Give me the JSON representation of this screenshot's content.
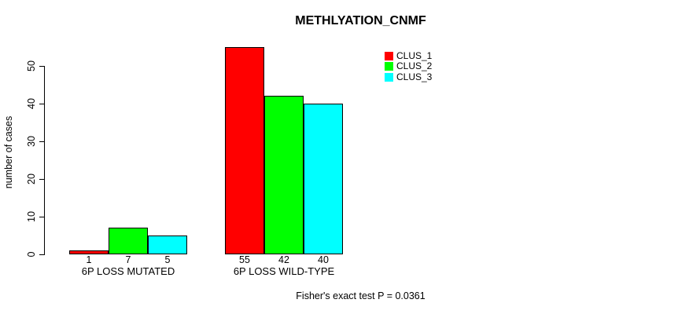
{
  "chart_data": {
    "type": "bar",
    "title": "METHLYATION_CNMF",
    "ylabel": "number of cases",
    "xlabel": "",
    "categories": [
      "6P LOSS MUTATED",
      "6P LOSS WILD-TYPE"
    ],
    "series": [
      {
        "name": "CLUS_1",
        "color": "#ff0000",
        "values": [
          1,
          55
        ]
      },
      {
        "name": "CLUS_2",
        "color": "#00ff00",
        "values": [
          7,
          42
        ]
      },
      {
        "name": "CLUS_3",
        "color": "#00ffff",
        "values": [
          5,
          40
        ]
      }
    ],
    "bar_value_labels": [
      [
        "1",
        "7",
        "5"
      ],
      [
        "55",
        "42",
        "40"
      ]
    ],
    "yticks": [
      0,
      10,
      20,
      30,
      40,
      50
    ],
    "ylim": [
      0,
      55
    ],
    "grid": false,
    "legend_position": "top-right",
    "bar_border_color": "#000000",
    "annotation": "Fisher's exact test P = 0.0361"
  }
}
